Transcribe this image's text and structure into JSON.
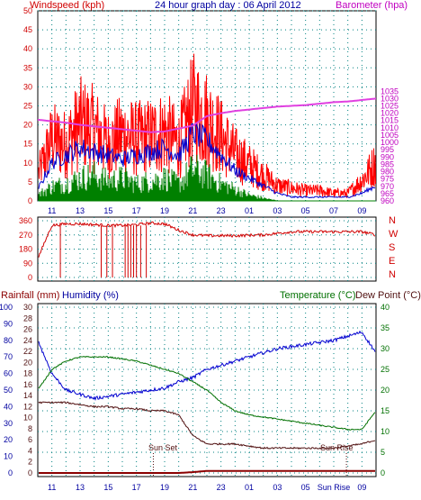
{
  "colors": {
    "wind": "#ff0000",
    "gust_fill": "#ff0000",
    "avg_blue": "#0000d0",
    "wind_green": "#008000",
    "baro": "#e040e0",
    "dir": "#d00000",
    "humidity": "#0000d0",
    "temperature": "#007000",
    "dewpoint": "#501010",
    "rain": "#8b0000",
    "frame": "#000000",
    "grid": "#008080",
    "title": "#0000a0",
    "label_red": "#d00000",
    "label_magenta": "#c000c0",
    "label_green": "#007000",
    "label_blue": "#0000a0"
  },
  "chart_data": [
    {
      "id": "wind",
      "type": "line",
      "title": "24 hour graph day : 06 April 2012",
      "ylabel_left": "Windspeed (kph)",
      "ylabel_right": "Barometer (hpa)",
      "x_hours": [
        10,
        11,
        12,
        13,
        14,
        15,
        16,
        17,
        18,
        19,
        20,
        21,
        22,
        23,
        24,
        25,
        26,
        27,
        28,
        29,
        30,
        31,
        32,
        33,
        34
      ],
      "x_tick_labels": [
        "11",
        "13",
        "15",
        "17",
        "19",
        "21",
        "23",
        "01",
        "03",
        "05",
        "07",
        "09"
      ],
      "ylim_left": [
        0,
        50
      ],
      "ytick_left": [
        0,
        5,
        10,
        15,
        20,
        25,
        30,
        35,
        40,
        45,
        50
      ],
      "ylim_right": [
        960,
        1090
      ],
      "ytick_right": [
        960,
        965,
        970,
        975,
        980,
        985,
        990,
        995,
        1000,
        1005,
        1010,
        1015,
        1020,
        1025,
        1030,
        1035
      ],
      "gust_max_kph": [
        10,
        24,
        22,
        30,
        28,
        22,
        26,
        24,
        25,
        27,
        22,
        36,
        32,
        25,
        18,
        14,
        10,
        6,
        5,
        4,
        4,
        3,
        3,
        8,
        15
      ],
      "avg_kph": [
        3,
        10,
        12,
        14,
        13,
        12,
        11,
        12,
        13,
        14,
        12,
        18,
        16,
        12,
        8,
        6,
        4,
        2,
        1,
        1,
        1,
        1,
        1,
        2,
        4
      ],
      "green_kph": [
        2,
        5,
        6,
        8,
        9,
        7,
        8,
        6,
        7,
        8,
        6,
        11,
        9,
        6,
        4,
        2,
        1,
        0,
        0,
        0,
        0,
        0,
        0,
        0,
        0
      ],
      "barometer_hpa": [
        1015.5,
        1014.5,
        1013.5,
        1012.0,
        1011.0,
        1010.0,
        1009.0,
        1008.0,
        1007.0,
        1007.5,
        1009.5,
        1011.5,
        1018.0,
        1020.0,
        1021.5,
        1022.5,
        1023.5,
        1024.5,
        1025.0,
        1025.5,
        1026.5,
        1027.5,
        1028.0,
        1029.0,
        1030.0
      ],
      "grid": true
    },
    {
      "id": "direction",
      "type": "line",
      "ytick_left": [
        "0",
        "90",
        "180",
        "270",
        "360"
      ],
      "ylim": [
        0,
        360
      ],
      "labels_right": [
        "N",
        "W",
        "S",
        "E",
        "N"
      ],
      "x_hours": [
        10,
        11,
        12,
        13,
        14,
        15,
        16,
        17,
        18,
        19,
        20,
        21,
        22,
        23,
        24,
        25,
        26,
        27,
        28,
        29,
        30,
        31,
        32,
        33,
        34
      ],
      "direction_deg": [
        120,
        330,
        340,
        340,
        335,
        330,
        330,
        335,
        345,
        340,
        300,
        270,
        265,
        265,
        265,
        268,
        270,
        280,
        290,
        290,
        290,
        290,
        290,
        290,
        270
      ],
      "grid": true
    },
    {
      "id": "temp_hum_rain",
      "type": "line",
      "ylabel_left_1": "Rainfall (mm)",
      "ylabel_left_2": "Humidity (%)",
      "ylabel_right_1": "Temperature (°C)",
      "ylabel_right_2": "Dew Point (°C)",
      "ytick_rain": [
        "0",
        "10",
        "20",
        "30",
        "40",
        "50",
        "60",
        "70",
        "80",
        "90",
        "100"
      ],
      "ytick_humidity": [
        "0",
        "2",
        "4",
        "6",
        "8",
        "10",
        "12",
        "14",
        "16",
        "18",
        "20",
        "22",
        "24",
        "26",
        "28",
        "30"
      ],
      "ytick_temp": [
        "0",
        "5",
        "10",
        "15",
        "20",
        "25",
        "30",
        "35",
        "40"
      ],
      "ylim_temp": [
        0,
        40
      ],
      "x_hours": [
        10,
        11,
        12,
        13,
        14,
        15,
        16,
        17,
        18,
        19,
        20,
        21,
        22,
        23,
        24,
        25,
        26,
        27,
        28,
        29,
        30,
        31,
        32,
        33,
        34
      ],
      "x_tick_labels": [
        "11",
        "13",
        "15",
        "17",
        "19",
        "21",
        "23",
        "01",
        "03",
        "05",
        "Sun Rise",
        "09"
      ],
      "humidity_pct_on_temp_scale": [
        32,
        24,
        20,
        19,
        18,
        18.5,
        19,
        19.5,
        20,
        20.5,
        22,
        23,
        25,
        26,
        27,
        28,
        29,
        30,
        30.5,
        31,
        31.5,
        32,
        33,
        34,
        29
      ],
      "temperature_c": [
        20,
        25,
        27,
        28,
        28,
        28,
        27.5,
        27,
        26,
        25,
        24,
        22,
        20,
        17,
        15,
        14,
        13.5,
        13,
        12.5,
        12,
        11.5,
        11,
        10.5,
        10.5,
        15
      ],
      "dewpoint_c": [
        17,
        17,
        17,
        16.5,
        16,
        16,
        15.5,
        15.5,
        15,
        15,
        14,
        9,
        7,
        7,
        7,
        6.5,
        6,
        6,
        6,
        6,
        6,
        6,
        6.5,
        7,
        8
      ],
      "rain_mm_on_temp_scale": [
        0,
        0,
        0,
        0,
        0,
        0,
        0,
        0,
        0,
        0,
        0,
        0.2,
        0.5,
        0.5,
        0.5,
        0.5,
        0.5,
        0.5,
        0.5,
        0.5,
        0.5,
        0.5,
        0.5,
        0.5,
        0.5
      ],
      "annotations": [
        "Sun Set",
        "Sun Rise"
      ],
      "grid": true
    }
  ]
}
